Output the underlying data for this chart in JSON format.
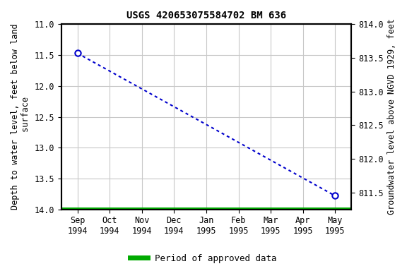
{
  "title": "USGS 420653075584702 BM 636",
  "ylabel_left": "Depth to water level, feet below land\n surface",
  "ylabel_right": "Groundwater level above NGVD 1929, feet",
  "ylim_left": [
    11.0,
    14.0
  ],
  "ylim_right_top": 814.0,
  "ylim_right_bottom": 811.25,
  "yticks_left": [
    11.0,
    11.5,
    12.0,
    12.5,
    13.0,
    13.5,
    14.0
  ],
  "yticks_right": [
    814.0,
    813.5,
    813.0,
    812.5,
    812.0,
    811.5
  ],
  "xtick_labels": [
    "Sep\n1994",
    "Oct\n1994",
    "Nov\n1994",
    "Dec\n1994",
    "Jan\n1995",
    "Feb\n1995",
    "Mar\n1995",
    "Apr\n1995",
    "May\n1995"
  ],
  "xtick_positions": [
    0,
    1,
    2,
    3,
    4,
    5,
    6,
    7,
    8
  ],
  "data_x": [
    0,
    8
  ],
  "data_y": [
    11.47,
    13.78
  ],
  "approved_y": 14.0,
  "line_color": "#0000cc",
  "approved_color": "#00aa00",
  "marker_color": "#0000cc",
  "marker_face": "white",
  "bg_color": "#ffffff",
  "plot_bg_color": "#ffffff",
  "grid_color": "#c8c8c8",
  "title_fontsize": 10,
  "axis_label_fontsize": 8.5,
  "tick_fontsize": 8.5,
  "legend_label": "Period of approved data",
  "legend_fontsize": 9
}
